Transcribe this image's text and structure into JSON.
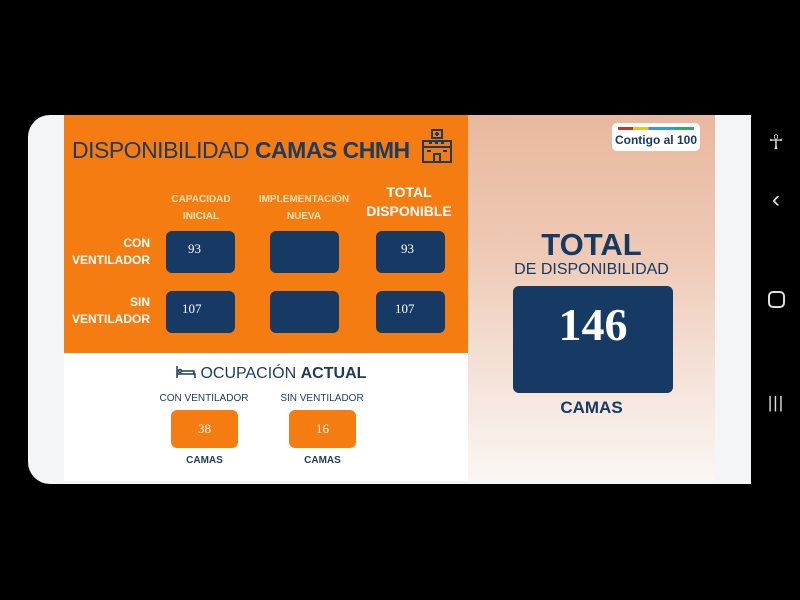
{
  "header": {
    "title_light": "DISPONIBILIDAD",
    "title_bold": "CAMAS CHMH",
    "icon": "hospital-icon"
  },
  "columns": [
    {
      "label_line1": "CAPACIDAD",
      "label_line2": "INICIAL"
    },
    {
      "label_line1": "IMPLEMENTACIÓN",
      "label_line2": "NUEVA"
    },
    {
      "label_line1": "TOTAL",
      "label_line2": "DISPONIBLE"
    }
  ],
  "rows": [
    {
      "label_line1": "CON",
      "label_line2": "VENTILADOR",
      "values": [
        "93",
        "",
        "93"
      ]
    },
    {
      "label_line1": "SIN",
      "label_line2": "VENTILADOR",
      "values": [
        "107",
        "",
        "107"
      ]
    }
  ],
  "occupancy": {
    "title_light": "OCUPACIÓN",
    "title_bold": "ACTUAL",
    "icon": "bed-icon",
    "items": [
      {
        "label": "CON VENTILADOR",
        "value": "38",
        "unit": "CAMAS"
      },
      {
        "label": "SIN VENTILADOR",
        "value": "16",
        "unit": "CAMAS"
      }
    ]
  },
  "summary": {
    "logo": "Contigo al 100",
    "title": "TOTAL",
    "subtitle": "DE DISPONIBILIDAD",
    "value": "146",
    "unit": "CAMAS"
  },
  "navbar": {
    "icons": [
      "accessibility-icon",
      "back-icon",
      "home-icon",
      "recents-icon"
    ]
  },
  "colors": {
    "orange": "#f57c11",
    "navy": "#163a63"
  }
}
